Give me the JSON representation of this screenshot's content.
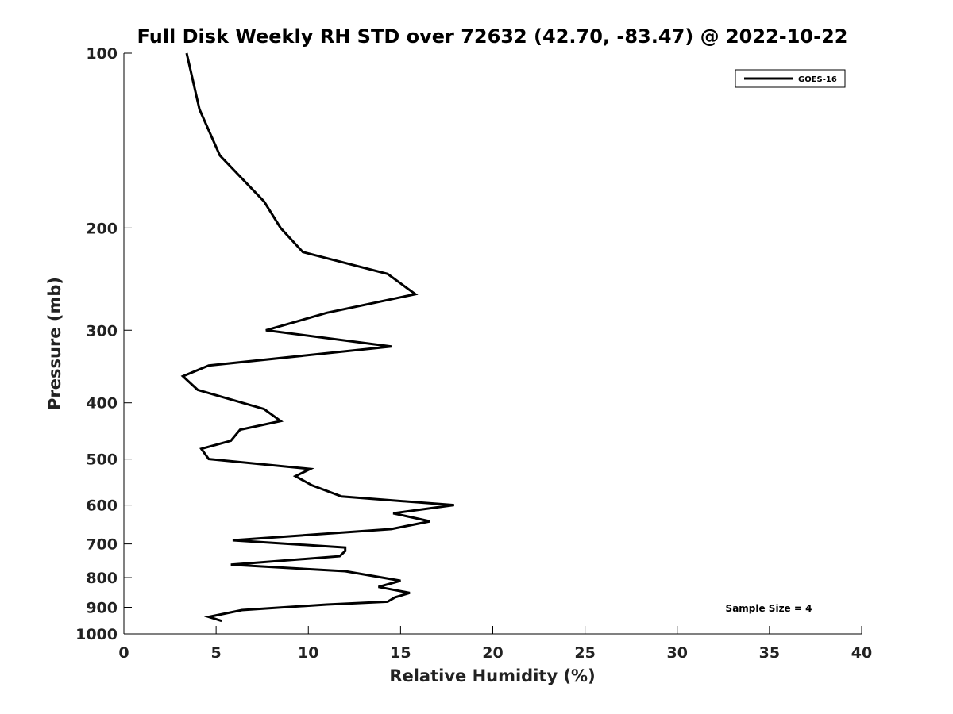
{
  "chart_data": {
    "type": "line",
    "title": "Full Disk Weekly RH STD over 72632 (42.70, -83.47) @ 2022-10-22",
    "xlabel": "Relative Humidity (%)",
    "ylabel": "Pressure (mb)",
    "xlim": [
      0,
      40
    ],
    "ylim": [
      1000,
      100
    ],
    "yscale": "log",
    "y_reversed": true,
    "xticks": [
      0,
      5,
      10,
      15,
      20,
      25,
      30,
      35,
      40
    ],
    "xtick_labels": [
      "0",
      "5",
      "10",
      "15",
      "20",
      "25",
      "30",
      "35",
      "40"
    ],
    "yticks": [
      100,
      200,
      300,
      400,
      500,
      600,
      700,
      800,
      900,
      1000
    ],
    "ytick_labels": [
      "100",
      "200",
      "300",
      "400",
      "500",
      "600",
      "700",
      "800",
      "900",
      "1000"
    ],
    "grid": false,
    "legend_position": "top-right",
    "series": [
      {
        "name": "GOES-16",
        "color": "#000000",
        "points": [
          [
            3.4,
            100
          ],
          [
            4.1,
            125
          ],
          [
            5.2,
            150
          ],
          [
            7.6,
            180
          ],
          [
            8.5,
            200
          ],
          [
            9.7,
            220
          ],
          [
            14.3,
            240
          ],
          [
            15.8,
            260
          ],
          [
            11.0,
            280
          ],
          [
            7.7,
            300
          ],
          [
            14.5,
            320
          ],
          [
            4.6,
            345
          ],
          [
            3.2,
            360
          ],
          [
            4.0,
            380
          ],
          [
            7.6,
            410
          ],
          [
            8.5,
            430
          ],
          [
            6.3,
            445
          ],
          [
            5.8,
            465
          ],
          [
            4.2,
            480
          ],
          [
            4.6,
            500
          ],
          [
            10.1,
            520
          ],
          [
            9.3,
            535
          ],
          [
            10.2,
            555
          ],
          [
            11.8,
            580
          ],
          [
            17.9,
            600
          ],
          [
            14.6,
            620
          ],
          [
            16.6,
            640
          ],
          [
            14.5,
            660
          ],
          [
            5.9,
            690
          ],
          [
            12.0,
            710
          ],
          [
            12.0,
            720
          ],
          [
            11.7,
            735
          ],
          [
            5.8,
            760
          ],
          [
            12.0,
            780
          ],
          [
            15.0,
            810
          ],
          [
            13.8,
            830
          ],
          [
            15.5,
            850
          ],
          [
            14.7,
            865
          ],
          [
            14.3,
            880
          ],
          [
            11.0,
            890
          ],
          [
            6.4,
            910
          ],
          [
            4.6,
            935
          ],
          [
            5.3,
            950
          ]
        ]
      }
    ],
    "annotations": [
      "Sample Size = 4"
    ]
  }
}
